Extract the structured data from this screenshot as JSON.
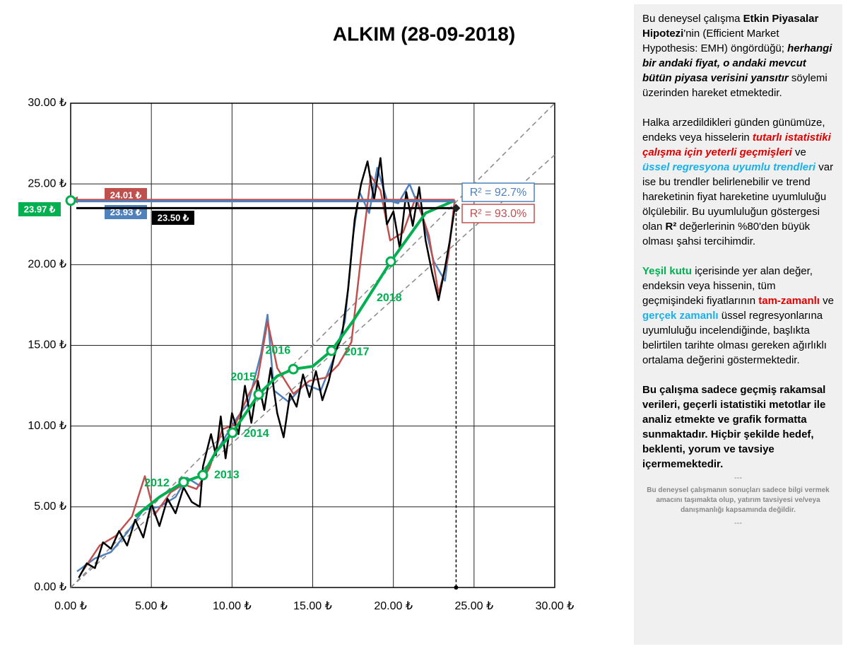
{
  "chart_data": {
    "type": "line",
    "title": "ALKIM (28-09-2018)",
    "xlim": [
      0,
      30
    ],
    "ylim": [
      0,
      30
    ],
    "xticks": [
      {
        "value": 0,
        "label": "0.00 ₺"
      },
      {
        "value": 5,
        "label": "5.00 ₺"
      },
      {
        "value": 10,
        "label": "10.00 ₺"
      },
      {
        "value": 15,
        "label": "15.00 ₺"
      },
      {
        "value": 20,
        "label": "20.00 ₺"
      },
      {
        "value": 25,
        "label": "25.00 ₺"
      },
      {
        "value": 30,
        "label": "30.00 ₺"
      }
    ],
    "yticks": [
      {
        "value": 0,
        "label": "0.00 ₺"
      },
      {
        "value": 5,
        "label": "5.00 ₺"
      },
      {
        "value": 10,
        "label": "10.00 ₺"
      },
      {
        "value": 15,
        "label": "15.00 ₺"
      },
      {
        "value": 20,
        "label": "20.00 ₺"
      },
      {
        "value": 25,
        "label": "25.00 ₺"
      },
      {
        "value": 30,
        "label": "30.00 ₺"
      }
    ],
    "grid": true,
    "reference_lines": [
      {
        "x": [
          0,
          30
        ],
        "y": [
          0,
          30
        ]
      },
      {
        "x": [
          0,
          30
        ],
        "y": [
          0,
          26.8
        ]
      }
    ],
    "series": [
      {
        "color": "#4f81bd",
        "width": 2.5,
        "x": [
          0.4,
          1.5,
          2.5,
          3.5,
          4.5,
          5.5,
          6.5,
          7.2,
          8,
          8.8,
          9.5,
          10.3,
          11,
          11.8,
          12.2,
          12.6,
          13.5,
          14.5,
          15.5,
          16.3,
          17,
          17.5,
          17.9,
          18.5,
          19,
          19.6,
          20.3,
          21,
          21.8,
          22.5,
          23.2,
          23.8
        ],
        "y": [
          1.0,
          1.8,
          2.2,
          3.4,
          4.8,
          5.0,
          5.6,
          6.8,
          6.3,
          8.0,
          9.2,
          10.5,
          11.4,
          14.5,
          16.9,
          12.2,
          11.5,
          12.6,
          12.2,
          14.2,
          16.5,
          21.8,
          24.5,
          23.2,
          26.0,
          24.0,
          23.8,
          25.0,
          23.0,
          20.2,
          19.0,
          23.9
        ]
      },
      {
        "color": "#c0504d",
        "width": 2.5,
        "x": [
          0.6,
          1.8,
          2.8,
          3.8,
          4.6,
          5.2,
          6.2,
          7,
          7.8,
          8.6,
          9.4,
          10.2,
          11,
          11.6,
          12.2,
          12.8,
          13.8,
          14.8,
          15.8,
          16.6,
          17.4,
          18,
          18.6,
          19.2,
          19.8,
          20.6,
          21.4,
          22.2,
          22.8,
          23.4,
          23.8
        ],
        "y": [
          0.8,
          2.6,
          3.2,
          4.4,
          6.9,
          4.5,
          5.9,
          6.4,
          6.1,
          7.4,
          9.8,
          10.1,
          11.9,
          13.0,
          16.5,
          13.6,
          12.0,
          12.8,
          13.0,
          13.8,
          15.2,
          20.5,
          25.5,
          24.6,
          21.5,
          22.0,
          24.2,
          21.8,
          18.2,
          20.5,
          24.0
        ]
      },
      {
        "color": "#000000",
        "width": 2.5,
        "x": [
          0.5,
          1,
          1.5,
          2,
          2.5,
          3,
          3.5,
          4,
          4.5,
          5,
          5.5,
          6,
          6.5,
          7,
          7.5,
          8,
          8.2,
          8.7,
          9,
          9.3,
          9.6,
          10,
          10.4,
          10.8,
          11.2,
          11.6,
          12,
          12.4,
          12.8,
          13.2,
          13.6,
          14,
          14.4,
          14.8,
          15.2,
          15.6,
          16,
          16.4,
          16.8,
          17.2,
          17.6,
          18,
          18.4,
          18.8,
          19.2,
          19.6,
          20,
          20.4,
          20.8,
          21.2,
          21.6,
          22,
          22.4,
          22.8,
          23.2,
          23.5,
          23.8
        ],
        "y": [
          0.6,
          1.5,
          1.2,
          2.8,
          2.4,
          3.5,
          2.6,
          4.2,
          3.1,
          5.2,
          3.8,
          5.5,
          4.6,
          6.2,
          5.3,
          5.0,
          7.5,
          9.5,
          8.2,
          10.6,
          8.0,
          10.8,
          9.5,
          12.5,
          10.2,
          12.8,
          11.0,
          13.6,
          10.8,
          9.3,
          12.0,
          11.2,
          13.2,
          11.8,
          13.4,
          11.6,
          12.8,
          14.6,
          15.5,
          18.5,
          22.8,
          25.0,
          26.4,
          24.0,
          26.6,
          22.5,
          23.3,
          21.0,
          24.5,
          22.4,
          24.8,
          21.5,
          19.5,
          17.8,
          19.8,
          21.5,
          23.5
        ]
      },
      {
        "color": "#00b050",
        "width": 4,
        "x": [
          4,
          5.5,
          7.0,
          8.19,
          9,
          10.03,
          11.65,
          12.8,
          13.8,
          15,
          16.16,
          17.5,
          19.84,
          21,
          22,
          23.8
        ],
        "y": [
          4.4,
          5.6,
          6.53,
          6.96,
          8.4,
          9.59,
          11.96,
          13.1,
          13.53,
          13.7,
          14.67,
          16.5,
          20.19,
          21.8,
          23.2,
          23.97
        ]
      }
    ],
    "markers": {
      "color": "#00b050",
      "labels": [
        "2012",
        "2013",
        "2014",
        "2015",
        "2016",
        "2017",
        "2018"
      ],
      "x": [
        7.0,
        8.19,
        10.03,
        11.65,
        13.8,
        16.16,
        19.84
      ],
      "y": [
        6.53,
        6.96,
        9.59,
        11.96,
        13.53,
        14.67,
        20.19
      ]
    },
    "current_x": 23.8,
    "levels": {
      "values": [
        24.01,
        23.93,
        23.5,
        23.97
      ],
      "value_labels": [
        "24.01 ₺",
        "23.93 ₺",
        "23.50 ₺",
        "23.97 ₺"
      ],
      "colors": [
        "#c0504d",
        "#4f81bd",
        "#000000",
        "#00b050"
      ]
    },
    "annotations": [
      {
        "text": "R² = 92.7%",
        "color": "#4f81bd"
      },
      {
        "text": "R² = 93.0%",
        "color": "#c0504d"
      }
    ]
  },
  "sidebar": {
    "paragraphs": [
      [
        {
          "text": "Bu deneysel çalışma ",
          "style": "plain"
        },
        {
          "text": "Etkin Piyasalar Hipotezi",
          "style": "bold"
        },
        {
          "text": "'nin (Efficient Market Hypothesis: EMH) öngördüğü; ",
          "style": "plain"
        },
        {
          "text": "herhangi bir andaki fiyat, o andaki mevcut bütün piyasa verisini yansıtır",
          "style": "bold-italic"
        },
        {
          "text": "  söylemi üzerinden hareket etmektedir.",
          "style": "plain"
        }
      ],
      [
        {
          "text": "Halka arzedildikleri günden günümüze, endeks veya hisselerin ",
          "style": "plain"
        },
        {
          "text": "tutarlı istatistiki çalışma için yeterli geçmişleri",
          "style": "bold-italic-red"
        },
        {
          "text": " ve ",
          "style": "plain"
        },
        {
          "text": "üssel regresyona uyumlu trendleri",
          "style": "bold-italic-cyan"
        },
        {
          "text": " var ise bu trendler belirlenebilir ve trend hareketinin fiyat hareketine uyumluluğu ölçülebilir.  Bu uyumluluğun göstergesi olan ",
          "style": "plain"
        },
        {
          "text": "R²",
          "style": "bold"
        },
        {
          "text": " değerlerinin %80'den büyük olması şahsi tercihimdir.",
          "style": "plain"
        }
      ],
      [
        {
          "text": "Yeşil kutu",
          "style": "bold-green"
        },
        {
          "text": " içerisinde yer alan değer, endeksin veya hissenin, tüm geçmişindeki fiyatlarının ",
          "style": "plain"
        },
        {
          "text": "tam-zamanlı",
          "style": "bold-red"
        },
        {
          "text": " ve ",
          "style": "plain"
        },
        {
          "text": "gerçek zamanlı",
          "style": "bold-cyan"
        },
        {
          "text": " üssel regresyonlarına uyumluluğu incelendiğinde, başlıkta belirtilen tarihte olması gereken ağırlıklı ortalama değerini göstermektedir.",
          "style": "plain"
        }
      ],
      [
        {
          "text": "Bu çalışma sadece geçmiş rakamsal verileri, geçerli istatistiki metotlar ile  analiz etmekte ve grafik formatta sunmaktadır. Hiçbir şekilde hedef, beklenti, yorum ve tavsiye içermemektedir.",
          "style": "bold"
        }
      ]
    ],
    "separator_top": "---",
    "footnote": "Bu deneysel çalışmanın sonuçları sadece bilgi vermek amacını taşımakta olup, yatırım tavsiyesi ve/veya danışmanlığı kapsamında değildir.",
    "separator_bottom": "---"
  }
}
